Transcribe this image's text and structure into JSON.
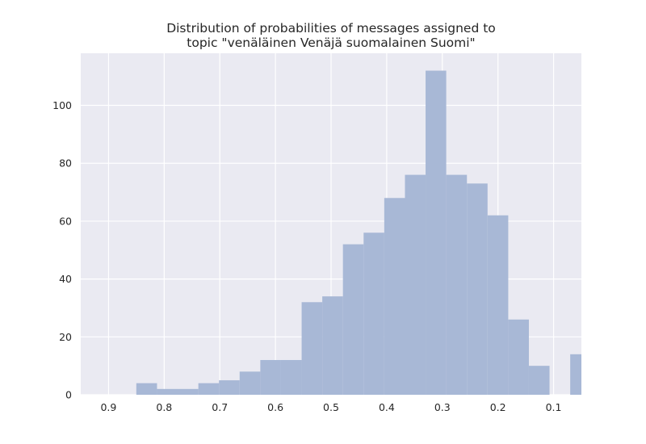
{
  "chart_data": {
    "type": "bar",
    "title_lines": [
      "Distribution of probabilities of messages assigned to",
      "topic \"venäläinen Venäjä suomalainen Suomi\""
    ],
    "xlabel": "",
    "ylabel": "",
    "x_inverted": true,
    "xlim": [
      0.95,
      0.05
    ],
    "ylim": [
      0,
      118
    ],
    "grid": true,
    "x_ticks": [
      0.9,
      0.8,
      0.7,
      0.6,
      0.5,
      0.4,
      0.3,
      0.2,
      0.1
    ],
    "x_tick_labels": [
      "0.9",
      "0.8",
      "0.7",
      "0.6",
      "0.5",
      "0.4",
      "0.3",
      "0.2",
      "0.1"
    ],
    "y_ticks": [
      0,
      20,
      40,
      60,
      80,
      100
    ],
    "y_tick_labels": [
      "0",
      "20",
      "40",
      "60",
      "80",
      "100"
    ],
    "bin_edges": [
      0.8501,
      0.8129,
      0.7758,
      0.7386,
      0.7015,
      0.6644,
      0.6272,
      0.5901,
      0.5529,
      0.5158,
      0.4787,
      0.4415,
      0.4044,
      0.3672,
      0.3301,
      0.293,
      0.2558,
      0.2187,
      0.1815,
      0.1444,
      0.1073,
      0.0701,
      0.05
    ],
    "counts": [
      4,
      2,
      2,
      4,
      5,
      8,
      12,
      12,
      32,
      34,
      52,
      56,
      68,
      76,
      112,
      76,
      73,
      62,
      26,
      10,
      0,
      14
    ],
    "colors": {
      "bar": "#a8b8d6",
      "plot_background": "#eaeaf2",
      "grid": "#ffffff",
      "text": "#262626"
    }
  }
}
